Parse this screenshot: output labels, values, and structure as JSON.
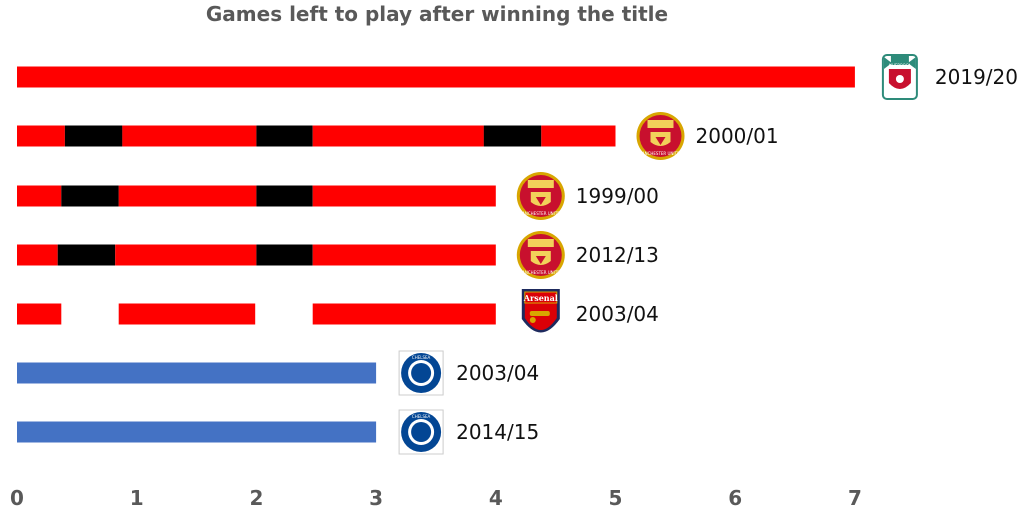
{
  "chart_data": {
    "type": "bar",
    "title": "Games left to play after winning the title",
    "xlabel": "",
    "ylabel": "",
    "xlim": [
      0,
      7
    ],
    "x_ticks": [
      "0",
      "1",
      "2",
      "3",
      "4",
      "5",
      "6",
      "7"
    ],
    "grid": false,
    "legend": "none",
    "colors": {
      "red": "#ff0000",
      "black": "#000000",
      "blue": "#4472c4"
    },
    "bars": [
      {
        "season": "2019/20",
        "club_icon": "liverpool-crest-icon",
        "crest_text": "LIVERPOOL",
        "value": 7,
        "segments": [
          {
            "from": 0,
            "to": 7,
            "color": "red"
          }
        ]
      },
      {
        "season": "2000/01",
        "club_icon": "manchester-united-crest-icon",
        "crest_text": "MANCHESTER UNITED",
        "value": 5,
        "segments": [
          {
            "from": 0,
            "to": 0.4,
            "color": "red"
          },
          {
            "from": 0.4,
            "to": 0.88,
            "color": "black"
          },
          {
            "from": 0.88,
            "to": 2.0,
            "color": "red"
          },
          {
            "from": 2.0,
            "to": 2.47,
            "color": "black"
          },
          {
            "from": 2.47,
            "to": 3.9,
            "color": "red"
          },
          {
            "from": 3.9,
            "to": 4.38,
            "color": "black"
          },
          {
            "from": 4.38,
            "to": 5.0,
            "color": "red"
          }
        ]
      },
      {
        "season": "1999/00",
        "club_icon": "manchester-united-crest-icon",
        "crest_text": "MANCHESTER UNITED",
        "value": 4,
        "segments": [
          {
            "from": 0,
            "to": 0.37,
            "color": "red"
          },
          {
            "from": 0.37,
            "to": 0.85,
            "color": "black"
          },
          {
            "from": 0.85,
            "to": 2.0,
            "color": "red"
          },
          {
            "from": 2.0,
            "to": 2.47,
            "color": "black"
          },
          {
            "from": 2.47,
            "to": 4.0,
            "color": "red"
          }
        ]
      },
      {
        "season": "2012/13",
        "club_icon": "manchester-united-crest-icon",
        "crest_text": "MANCHESTER UNITED",
        "value": 4,
        "segments": [
          {
            "from": 0,
            "to": 0.34,
            "color": "red"
          },
          {
            "from": 0.34,
            "to": 0.82,
            "color": "black"
          },
          {
            "from": 0.82,
            "to": 2.0,
            "color": "red"
          },
          {
            "from": 2.0,
            "to": 2.47,
            "color": "black"
          },
          {
            "from": 2.47,
            "to": 4.0,
            "color": "red"
          }
        ]
      },
      {
        "season": "2003/04",
        "club_icon": "arsenal-crest-icon",
        "crest_text": "Arsenal",
        "value": 4,
        "segments": [
          {
            "from": 0,
            "to": 0.37,
            "color": "red"
          },
          {
            "from": 0.85,
            "to": 1.99,
            "color": "red"
          },
          {
            "from": 2.47,
            "to": 4.0,
            "color": "red"
          }
        ]
      },
      {
        "season": "2003/04",
        "club_icon": "chelsea-crest-icon",
        "crest_text": "CHELSEA",
        "value": 3,
        "segments": [
          {
            "from": 0,
            "to": 3,
            "color": "blue"
          }
        ]
      },
      {
        "season": "2014/15",
        "club_icon": "chelsea-crest-icon",
        "crest_text": "CHELSEA",
        "value": 3,
        "segments": [
          {
            "from": 0,
            "to": 3,
            "color": "blue"
          }
        ]
      }
    ]
  }
}
